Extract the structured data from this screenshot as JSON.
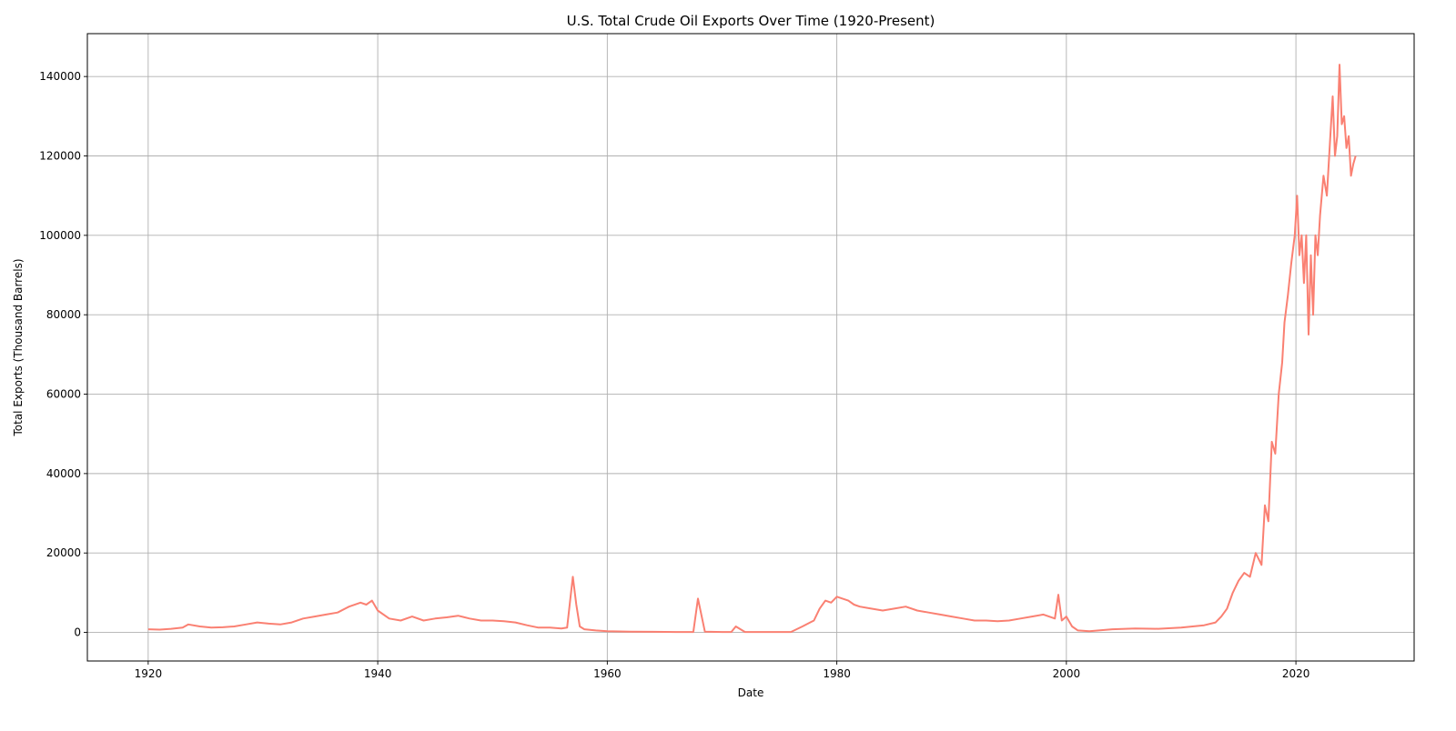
{
  "chart_data": {
    "type": "line",
    "title": "U.S. Total Crude Oil Exports Over Time (1920-Present)",
    "xlabel": "Date",
    "ylabel": "Total Exports (Thousand Barrels)",
    "xlim": [
      1914.7,
      2030.3
    ],
    "ylim": [
      -7200,
      150800
    ],
    "x_ticks": [
      1920,
      1940,
      1960,
      1980,
      2000,
      2020
    ],
    "y_ticks": [
      0,
      20000,
      40000,
      60000,
      80000,
      100000,
      120000,
      140000
    ],
    "grid": true,
    "legend": "none",
    "series": [
      {
        "color": "#fa8072",
        "x": [
          1920.0,
          1921.0,
          1922.0,
          1923.0,
          1923.5,
          1924.5,
          1925.5,
          1926.5,
          1927.5,
          1928.5,
          1929.5,
          1930.5,
          1931.5,
          1932.5,
          1933.5,
          1934.5,
          1935.5,
          1936.5,
          1937.5,
          1938.5,
          1939.0,
          1939.5,
          1940.0,
          1941.0,
          1942.0,
          1943.0,
          1944.0,
          1945.0,
          1946.0,
          1947.0,
          1948.0,
          1949.0,
          1950.0,
          1951.0,
          1952.0,
          1953.0,
          1954.0,
          1955.0,
          1956.0,
          1956.5,
          1956.8,
          1957.0,
          1957.3,
          1957.6,
          1958.0,
          1959.0,
          1960.0,
          1962.0,
          1964.0,
          1966.0,
          1967.0,
          1967.5,
          1967.9,
          1968.5,
          1970.0,
          1970.8,
          1971.2,
          1972.0,
          1974.0,
          1975.0,
          1976.0,
          1977.0,
          1978.0,
          1978.5,
          1979.0,
          1979.5,
          1980.0,
          1980.5,
          1981.0,
          1981.5,
          1982.0,
          1983.0,
          1984.0,
          1985.0,
          1986.0,
          1987.0,
          1988.0,
          1989.0,
          1990.0,
          1991.0,
          1992.0,
          1993.0,
          1994.0,
          1995.0,
          1996.0,
          1997.0,
          1998.0,
          1999.0,
          1999.3,
          1999.6,
          2000.0,
          2000.5,
          2001.0,
          2002.0,
          2004.0,
          2006.0,
          2008.0,
          2010.0,
          2012.0,
          2013.0,
          2013.5,
          2014.0,
          2014.5,
          2015.0,
          2015.5,
          2016.0,
          2016.5,
          2017.0,
          2017.3,
          2017.6,
          2017.9,
          2018.2,
          2018.5,
          2018.8,
          2019.0,
          2019.3,
          2019.6,
          2019.9,
          2020.1,
          2020.3,
          2020.5,
          2020.7,
          2020.9,
          2021.1,
          2021.3,
          2021.5,
          2021.7,
          2021.9,
          2022.1,
          2022.4,
          2022.7,
          2023.0,
          2023.2,
          2023.4,
          2023.6,
          2023.8,
          2024.0,
          2024.2,
          2024.4,
          2024.6,
          2024.8,
          2025.0,
          2025.2
        ],
        "y": [
          800,
          700,
          900,
          1200,
          2000,
          1500,
          1200,
          1300,
          1500,
          2000,
          2500,
          2200,
          2000,
          2500,
          3500,
          4000,
          4500,
          5000,
          6500,
          7500,
          7000,
          8000,
          5500,
          3500,
          3000,
          4000,
          3000,
          3500,
          3800,
          4200,
          3500,
          3000,
          3000,
          2800,
          2500,
          1800,
          1200,
          1200,
          1000,
          1200,
          9000,
          14000,
          7000,
          1500,
          800,
          500,
          300,
          200,
          150,
          100,
          100,
          100,
          8500,
          200,
          100,
          100,
          1500,
          100,
          100,
          100,
          100,
          1500,
          3000,
          6000,
          8000,
          7500,
          9000,
          8500,
          8000,
          7000,
          6500,
          6000,
          5500,
          6000,
          6500,
          5500,
          5000,
          4500,
          4000,
          3500,
          3000,
          3000,
          2800,
          3000,
          3500,
          4000,
          4500,
          3500,
          9500,
          3000,
          4000,
          1500,
          500,
          300,
          800,
          1000,
          900,
          1200,
          1800,
          2500,
          4000,
          6000,
          10000,
          13000,
          15000,
          14000,
          20000,
          17000,
          32000,
          28000,
          48000,
          45000,
          60000,
          68000,
          78000,
          85000,
          93000,
          100000,
          110000,
          95000,
          100000,
          88000,
          100000,
          75000,
          95000,
          80000,
          100000,
          95000,
          105000,
          115000,
          110000,
          125000,
          135000,
          120000,
          125000,
          143000,
          128000,
          130000,
          122000,
          125000,
          115000,
          118000,
          120000
        ]
      }
    ]
  }
}
